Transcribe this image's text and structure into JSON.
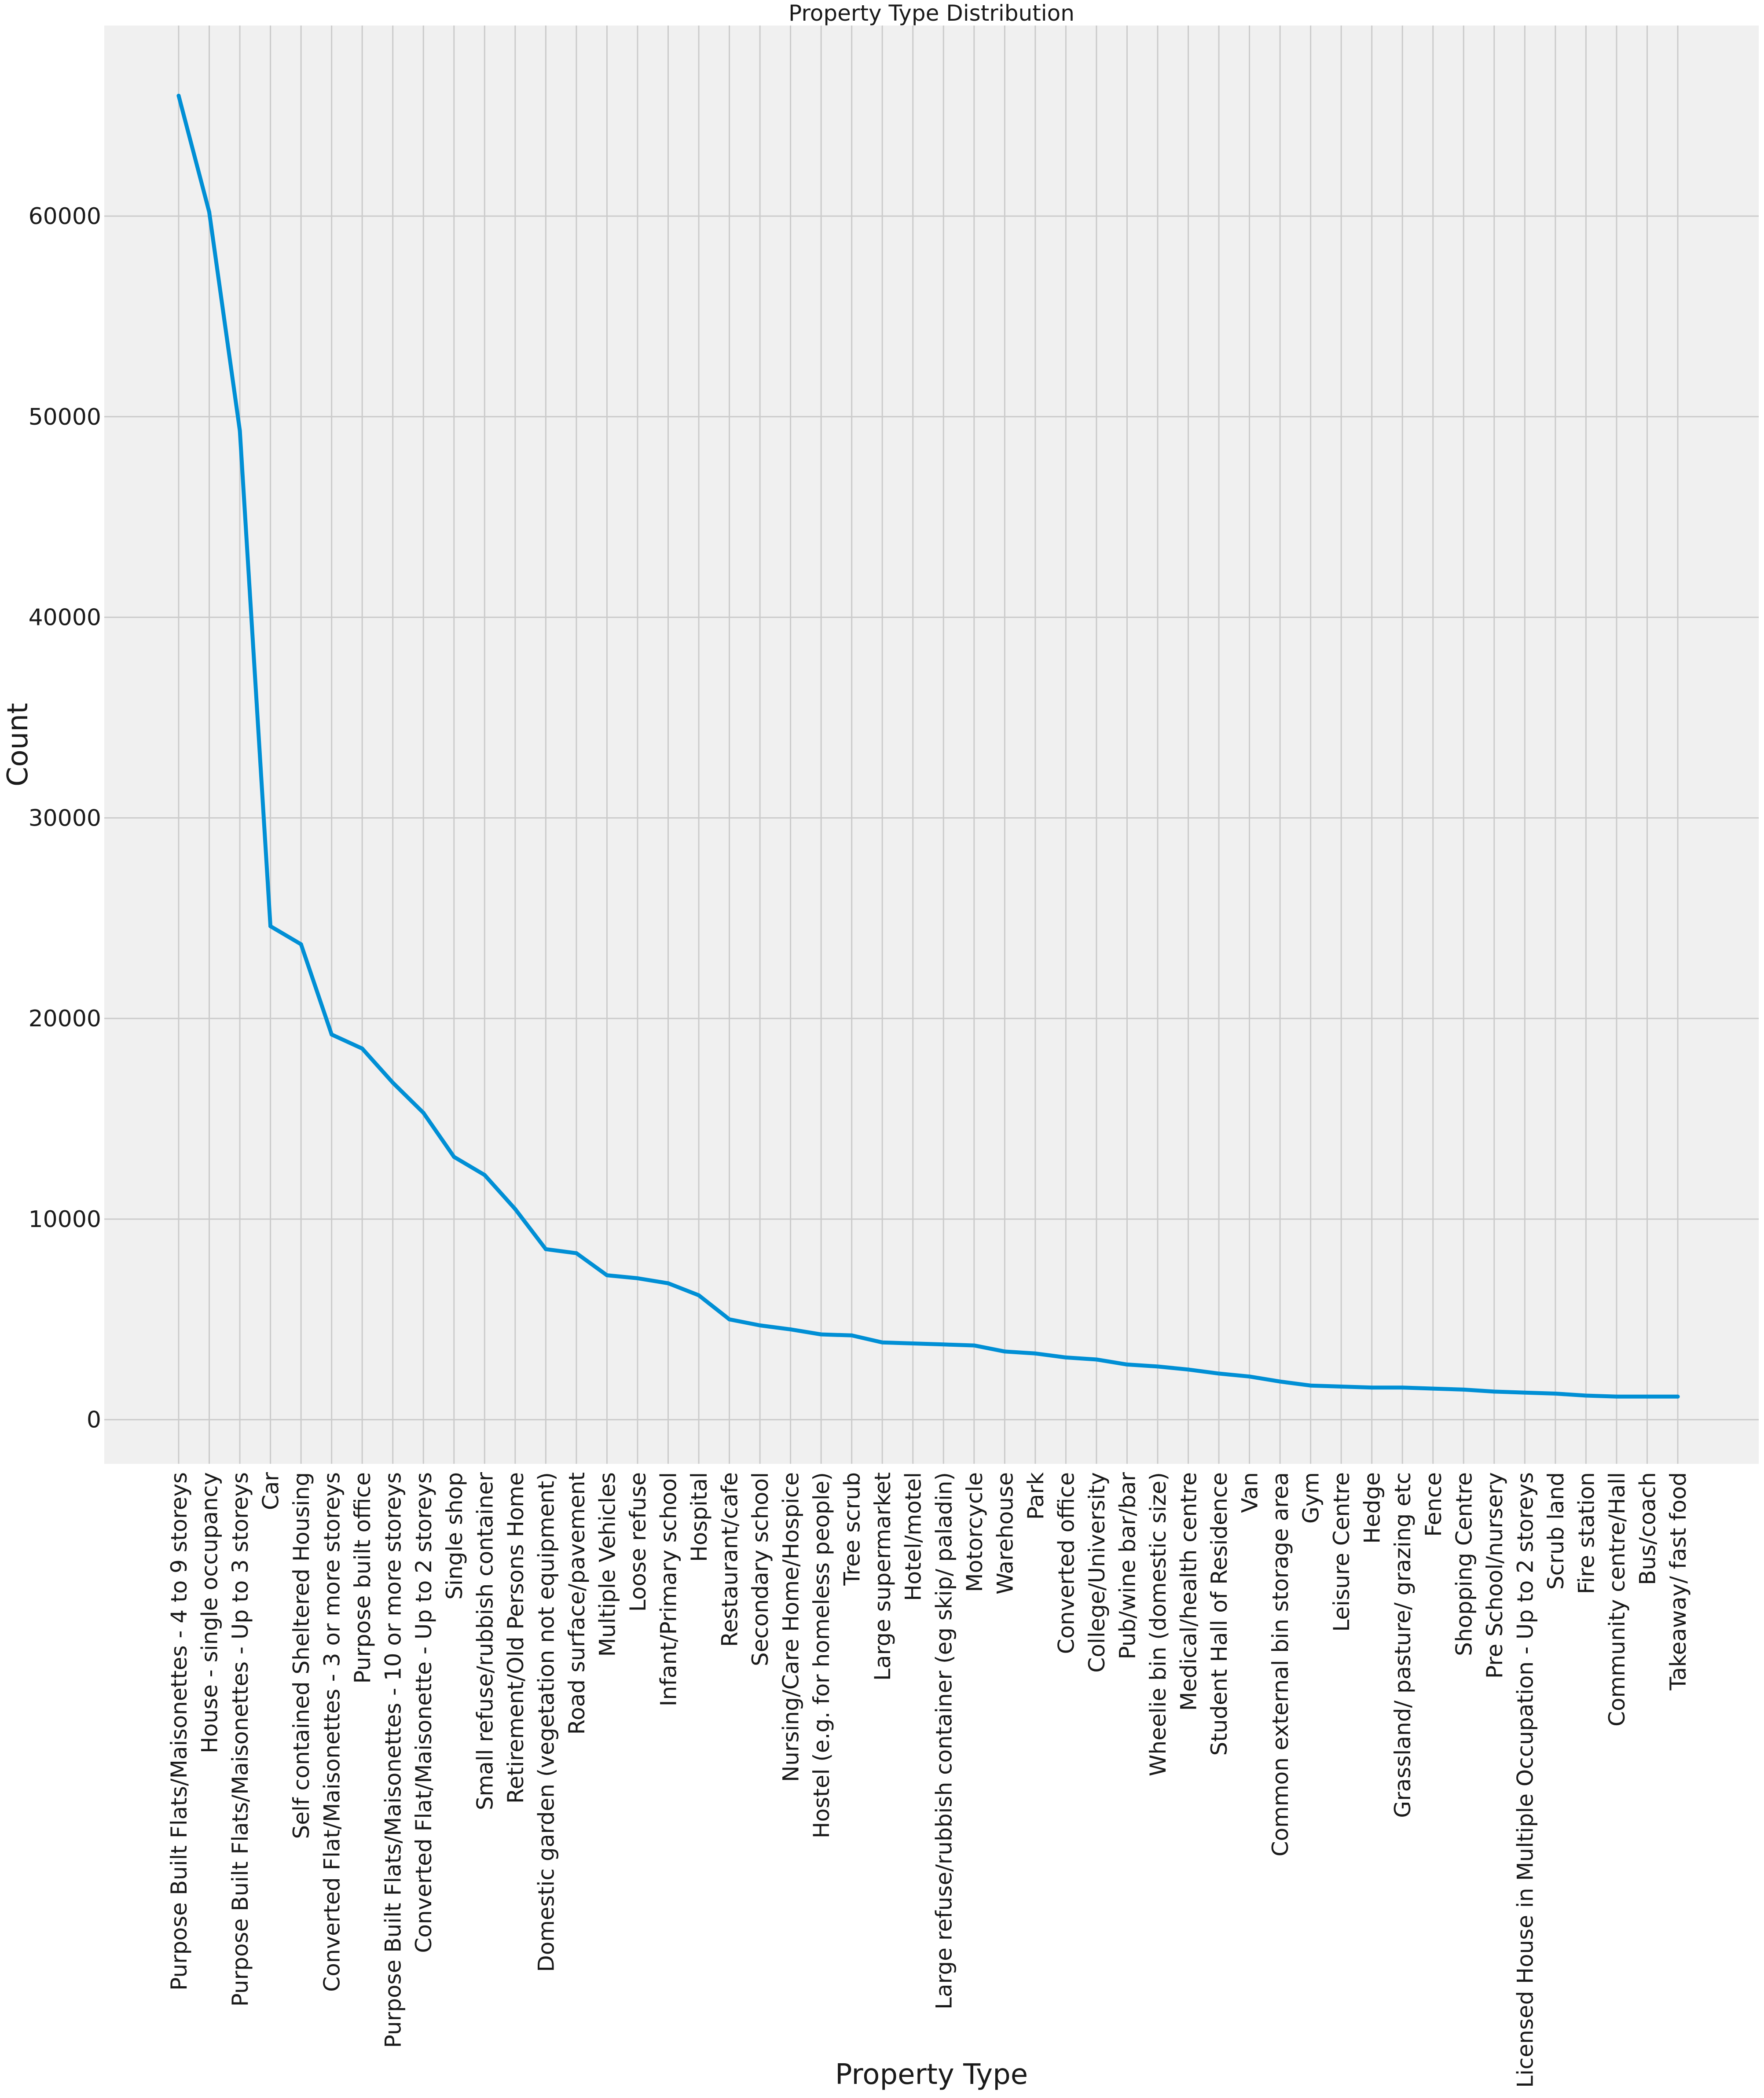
{
  "chart_data": {
    "type": "line",
    "title": "Property Type Distribution",
    "xlabel": "Property Type",
    "ylabel": "Count",
    "ylim": [
      -2200,
      69500
    ],
    "yticks": [
      0,
      10000,
      20000,
      30000,
      40000,
      50000,
      60000
    ],
    "grid": true,
    "colors": {
      "line": "#008fd5",
      "plot_bg": "#f0f0f0",
      "grid": "#cbcbcb"
    },
    "categories": [
      "Purpose Built Flats/Maisonettes - 4 to 9 storeys",
      "House - single occupancy",
      "Purpose Built Flats/Maisonettes - Up to 3 storeys",
      "Car",
      "Self contained Sheltered Housing",
      "Converted Flat/Maisonettes - 3 or more storeys",
      "Purpose built office",
      "Purpose Built Flats/Maisonettes - 10 or more storeys",
      "Converted Flat/Maisonette - Up to 2 storeys",
      "Single shop",
      "Small refuse/rubbish container",
      "Retirement/Old Persons Home",
      "Domestic garden (vegetation not equipment)",
      "Road surface/pavement",
      "Multiple Vehicles",
      "Loose refuse",
      "Infant/Primary school",
      "Hospital",
      "Restaurant/cafe",
      "Secondary school",
      "Nursing/Care Home/Hospice",
      "Hostel (e.g. for homeless people)",
      "Tree scrub",
      "Large supermarket",
      "Hotel/motel",
      "Large refuse/rubbish container (eg skip/ paladin)",
      "Motorcycle",
      "Warehouse",
      "Park",
      "Converted office",
      "College/University",
      "Pub/wine bar/bar",
      "Wheelie bin (domestic size)",
      "Medical/health centre",
      "Student Hall of Residence",
      "Van",
      "Common external bin storage area",
      "Gym",
      "Leisure Centre",
      "Hedge",
      "Grassland/ pasture/ grazing etc",
      "Fence",
      "Shopping Centre",
      "Pre School/nursery",
      "Licensed House in Multiple Occupation - Up to 2 storeys",
      "Scrub land",
      "Fire station",
      "Community centre/Hall",
      "Bus/coach",
      "Takeaway/ fast food"
    ],
    "values": [
      66000,
      60200,
      49300,
      24600,
      23700,
      19200,
      18500,
      16800,
      15300,
      13100,
      12200,
      10500,
      8500,
      8300,
      7200,
      7050,
      6800,
      6200,
      5000,
      4700,
      4500,
      4250,
      4200,
      3850,
      3800,
      3750,
      3700,
      3400,
      3300,
      3100,
      3000,
      2750,
      2650,
      2500,
      2300,
      2150,
      1900,
      1700,
      1650,
      1600,
      1600,
      1550,
      1500,
      1400,
      1350,
      1300,
      1200,
      1150,
      1150,
      1150
    ]
  }
}
